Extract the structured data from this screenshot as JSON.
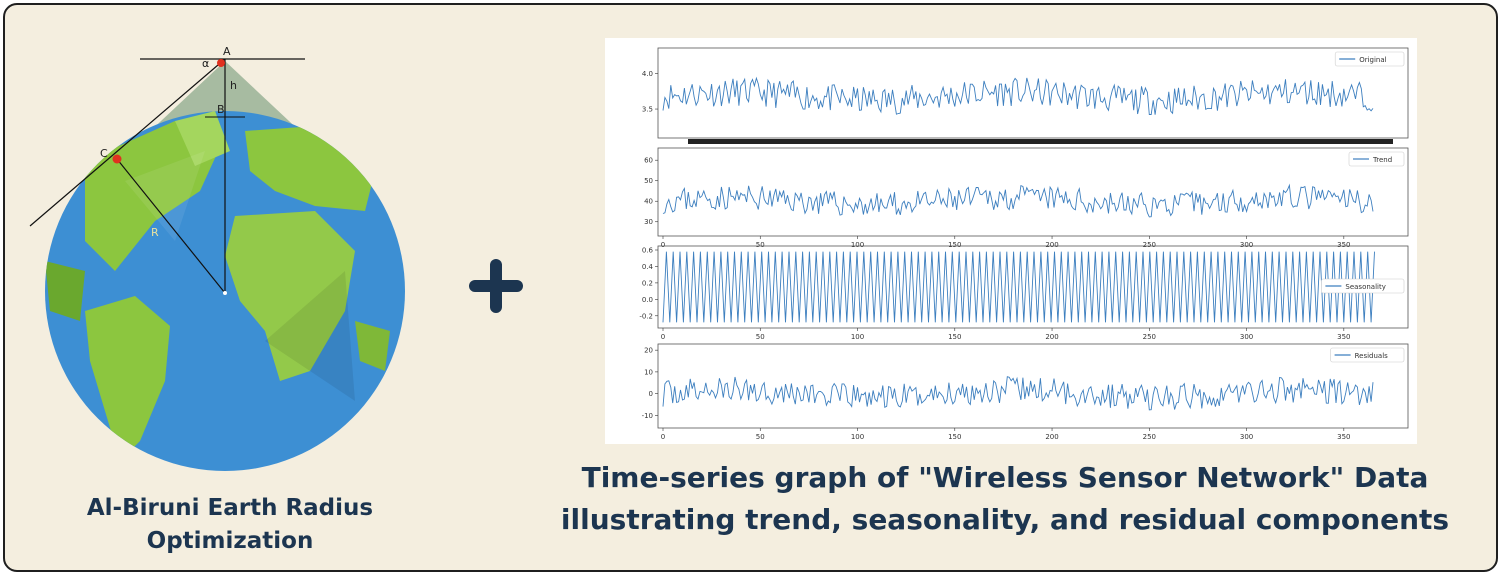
{
  "left_panel": {
    "caption_line1": "Al-Biruni Earth Radius",
    "caption_line2": "Optimization",
    "geometry_labels": {
      "a": "A",
      "b": "B",
      "c": "C",
      "alpha": "α",
      "h": "h",
      "r": "R"
    },
    "colors": {
      "ocean": "#3d8fd3",
      "land": "#8cc63f",
      "cone": "#9eb59a",
      "marker": "#e0311f"
    }
  },
  "plus_sign": {
    "icon": "plus-icon",
    "color": "#1c3550"
  },
  "right_caption": {
    "line1": "Time-series graph of \"Wireless Sensor Network\" Data",
    "line2": "illustrating trend, seasonality, and residual components"
  },
  "chart_data": [
    {
      "type": "line",
      "legend": "Original",
      "legend_position": "top-right",
      "y_ticks": [
        "4.0",
        "3.5"
      ],
      "y_tick_values": [
        4.0,
        3.5
      ],
      "ylim": [
        3.15,
        4.3
      ],
      "xlim": [
        0,
        365
      ],
      "x_ticks_dense": true,
      "seed": 11,
      "base": 3.68,
      "amplitude": 0.2,
      "points": 366,
      "color": "#3d7fbf"
    },
    {
      "type": "line",
      "legend": "Trend",
      "legend_position": "top-right",
      "y_ticks": [
        "60",
        "50",
        "40",
        "30"
      ],
      "y_tick_values": [
        60,
        50,
        40,
        30
      ],
      "ylim": [
        25,
        64
      ],
      "xlim": [
        0,
        365
      ],
      "x_ticks": [
        "0",
        "50",
        "100",
        "150",
        "200",
        "250",
        "300",
        "350"
      ],
      "x_tick_values": [
        0,
        50,
        100,
        150,
        200,
        250,
        300,
        350
      ],
      "seed": 23,
      "base": 40,
      "amplitude": 6,
      "points": 366,
      "color": "#3d7fbf"
    },
    {
      "type": "line",
      "legend": "Seasonality",
      "legend_position": "center-right",
      "y_ticks": [
        "0.6",
        "0.4",
        "0.2",
        "0.0",
        "-0.2"
      ],
      "y_tick_values": [
        0.6,
        0.4,
        0.2,
        0.0,
        -0.2
      ],
      "ylim": [
        -0.3,
        0.6
      ],
      "xlim": [
        0,
        365
      ],
      "x_ticks": [
        "0",
        "50",
        "100",
        "150",
        "200",
        "250",
        "300",
        "350"
      ],
      "x_tick_values": [
        0,
        50,
        100,
        150,
        200,
        250,
        300,
        350
      ],
      "periodic": true,
      "period": 3.5,
      "low": -0.28,
      "high": 0.58,
      "points": 366,
      "color": "#3d7fbf"
    },
    {
      "type": "line",
      "legend": "Residuals",
      "legend_position": "top-right",
      "y_ticks": [
        "20",
        "10",
        "0",
        "-10"
      ],
      "y_tick_values": [
        20,
        10,
        0,
        -10
      ],
      "ylim": [
        -14,
        21
      ],
      "xlim": [
        0,
        365
      ],
      "x_ticks": [
        "0",
        "50",
        "100",
        "150",
        "200",
        "250",
        "300",
        "350"
      ],
      "x_tick_values": [
        0,
        50,
        100,
        150,
        200,
        250,
        300,
        350
      ],
      "seed": 37,
      "base": 0,
      "amplitude": 6,
      "points": 366,
      "color": "#3d7fbf"
    }
  ]
}
